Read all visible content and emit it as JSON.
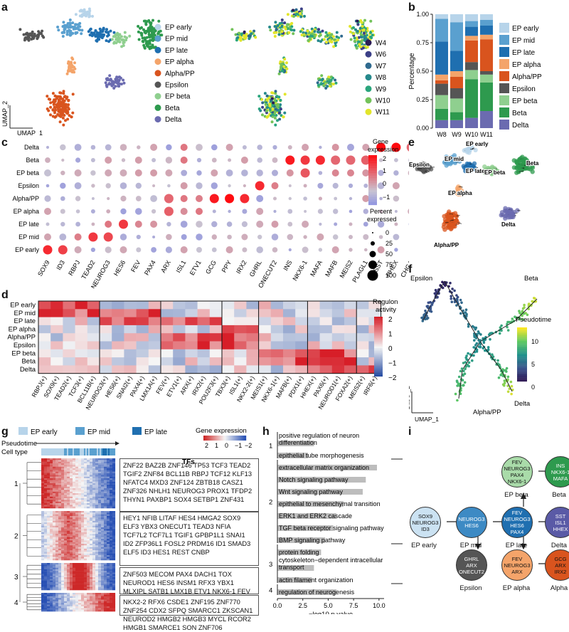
{
  "panels": {
    "a": "a",
    "b": "b",
    "c": "c",
    "d": "d",
    "e": "e",
    "f": "f",
    "g": "g",
    "h": "h",
    "i": "i"
  },
  "colors": {
    "EP early": "#b7d4ea",
    "EP mid": "#5aa0cf",
    "EP late": "#1f6fb0",
    "EP alpha": "#f4a46a",
    "Alpha/PP": "#d9541e",
    "Epsilon": "#555555",
    "EP beta": "#8fcf8f",
    "Beta": "#2e9a4e",
    "Delta": "#6b6bb0"
  },
  "panel_a": {
    "xlabel": "UMAP_1",
    "ylabel": "UMAP_2",
    "celltype_legend": [
      "EP early",
      "EP mid",
      "EP late",
      "EP alpha",
      "Alpha/PP",
      "Epsilon",
      "EP beta",
      "Beta",
      "Delta"
    ],
    "week_legend": [
      "W4",
      "W6",
      "W7",
      "W8",
      "W9",
      "W10",
      "W11"
    ],
    "week_colors": [
      "#2b1b54",
      "#3b3f87",
      "#2f6a8f",
      "#26898c",
      "#2aa57c",
      "#73c25a",
      "#e2e52b"
    ]
  },
  "panel_c": {
    "legend_title": "Gene expression",
    "percent_title": "Percent expressed",
    "color_ticks": [
      "2",
      "1",
      "0",
      "−1"
    ],
    "size_ticks": [
      "0",
      "25",
      "50",
      "75",
      "100"
    ]
  },
  "panel_d": {
    "legend_title": "Regulon activity",
    "ticks": [
      "2",
      "1",
      "0",
      "−1",
      "−2"
    ]
  },
  "panel_e": {
    "labels": [
      "EP early",
      "Epsilon",
      "EP mid",
      "EP late",
      "EP beta",
      "Beta",
      "EP alpha",
      "Alpha/PP",
      "Delta"
    ]
  },
  "panel_f": {
    "labels": [
      "Epsilon",
      "Beta",
      "Alpha/PP",
      "Delta"
    ],
    "legend_title": "Pseudotime",
    "ticks": [
      "10",
      "5",
      "0"
    ],
    "xlabel": "UMAP_1",
    "ylabel": "UMAP_2"
  },
  "panel_g": {
    "legend": [
      "EP early",
      "EP mid",
      "EP late"
    ],
    "pseudotime": "Pseudotime",
    "celltype": "Cell type",
    "ge_title": "Gene expression",
    "ge_ticks": [
      "2",
      "1",
      "0",
      "−1",
      "−2"
    ],
    "tfs": "TFs",
    "clusters": [
      {
        "id": "1",
        "lines": [
          "ZNF22 BAZ2B ZNF146 TP53 TCF3 TEAD2",
          "TGIF2 ZNF84 BCL11B RBPJ TCF12 KLF13",
          "NFATC4 MXD3 ZNF124 ZBTB18 CASZ1",
          "ZNF326 NHLH1 NEUROG3 PROX1 TFDP2",
          "THYN1 PAXBP1 SOX4 SETBP1 ZNF431"
        ]
      },
      {
        "id": "2",
        "lines": [
          "HEY1 NFIB LITAF HES4 HMGA2 SOX9",
          "ELF3 YBX3 ONECUT1 TEAD3 NFIA",
          "TCF7L2 TCF7L1 TGIF1 GPBP1L1 SNAI1",
          "ID2 ZFP36L1 FOSL2 PRDM16 ID1 SMAD3",
          "ELF5 ID3 HES1 REST CNBP"
        ]
      },
      {
        "id": "3",
        "lines": [
          "ZNF503 MECOM PAX4 DACH1 TOX",
          "NEUROD1 HES6 INSM1 RFX3 YBX1",
          "MLXIPL SATB1 LMX1B ETV1 NKX6-1 FEV"
        ]
      },
      {
        "id": "4",
        "lines": [
          "NKX2-2 RFX6 CSDE1 ZNF195 ZNF770",
          "ZNF254 CDX2 SFPQ SMARCC1 ZKSCAN1",
          "NEUROD2 HMGB2 HMGB3 MYCL RCOR2",
          "HMGB1 SMARCE1 SON ZNF706"
        ]
      }
    ]
  },
  "panel_h": {
    "xlabel": "−log10 p value",
    "xticks": [
      "0.0",
      "2.5",
      "5.0",
      "7.5",
      "10.0"
    ],
    "terms": [
      {
        "group": "1",
        "label": "positive regulation of neuron differentiation",
        "value": 3.6
      },
      {
        "group": "1",
        "label": "epithelial tube morphogenesis",
        "value": 3.0
      },
      {
        "group": "2",
        "label": "extracellular matrix organization",
        "value": 9.8
      },
      {
        "group": "2",
        "label": "Notch signaling pathway",
        "value": 8.7
      },
      {
        "group": "2",
        "label": "Wnt signaling pathway",
        "value": 8.4
      },
      {
        "group": "2",
        "label": "epithelial to mesenchymal transition",
        "value": 6.5
      },
      {
        "group": "2",
        "label": "ERK1 and ERK2 cascade",
        "value": 5.8
      },
      {
        "group": "2",
        "label": "TGF beta receptor signaling pathway",
        "value": 5.5
      },
      {
        "group": "2",
        "label": "BMP signaling pathway",
        "value": 4.7
      },
      {
        "group": "3",
        "label": "protein folding",
        "value": 4.3
      },
      {
        "group": "3",
        "label": "cytoskeleton−dependent intracellular transport",
        "value": 3.6
      },
      {
        "group": "3",
        "label": "actin filament organization",
        "value": 3.4
      },
      {
        "group": "4",
        "label": "regulation of neurogenesis",
        "value": 5.8
      }
    ]
  },
  "chart_data": [
    {
      "type": "bar",
      "panel": "b",
      "stacked": true,
      "categories": [
        "W8",
        "W9",
        "W10",
        "W11"
      ],
      "ylabel": "Percentage",
      "ylim": [
        0,
        1.0
      ],
      "yticks": [
        "0.00",
        "0.25",
        "0.50",
        "0.75",
        "1.00"
      ],
      "legend": [
        "EP early",
        "EP mid",
        "EP late",
        "EP alpha",
        "Alpha/PP",
        "Epsilon",
        "EP beta",
        "Beta",
        "Delta"
      ],
      "series": [
        {
          "name": "Delta",
          "values": [
            0.07,
            0.07,
            0.09,
            0.15
          ]
        },
        {
          "name": "Beta",
          "values": [
            0.1,
            0.07,
            0.34,
            0.25
          ]
        },
        {
          "name": "EP beta",
          "values": [
            0.12,
            0.12,
            0.08,
            0.07
          ]
        },
        {
          "name": "Epsilon",
          "values": [
            0.1,
            0.09,
            0.07,
            0.03
          ]
        },
        {
          "name": "Alpha/PP",
          "values": [
            0.03,
            0.1,
            0.19,
            0.28
          ]
        },
        {
          "name": "EP alpha",
          "values": [
            0.05,
            0.05,
            0.04,
            0.04
          ]
        },
        {
          "name": "EP late",
          "values": [
            0.29,
            0.18,
            0.08,
            0.08
          ]
        },
        {
          "name": "EP mid",
          "values": [
            0.2,
            0.25,
            0.05,
            0.05
          ]
        },
        {
          "name": "EP early",
          "values": [
            0.04,
            0.07,
            0.06,
            0.05
          ]
        }
      ]
    },
    {
      "type": "scatter",
      "panel": "c",
      "rows": [
        "Delta",
        "Beta",
        "EP beta",
        "Epsilon",
        "Alpha/PP",
        "EP alpha",
        "EP late",
        "EP mid",
        "EP early"
      ],
      "genes": [
        "SOX9",
        "ID3",
        "RBPJ",
        "TEAD2",
        "NEUROG3",
        "HES6",
        "FEV",
        "PAX4",
        "ARX",
        "ISL1",
        "ETV1",
        "GCG",
        "PPY",
        "IRX2",
        "GHRL",
        "ONECUT2",
        "INS",
        "NKX6-1",
        "MAFA",
        "MAFB",
        "MEIS2",
        "PLAGL1",
        "SST",
        "HHEX",
        "CHGA"
      ]
    },
    {
      "type": "heatmap",
      "panel": "d",
      "rows": [
        "EP early",
        "EP mid",
        "EP late",
        "EP alpha",
        "Alpha/PP",
        "Epsilon",
        "EP beta",
        "Beta",
        "Delta"
      ],
      "columns": [
        "RBPJ(+)",
        "SOX9(+)",
        "TEAD2(+)",
        "TCF3(+)",
        "BCL11B(+)",
        "NEUROG3(+)",
        "HES6(+)",
        "SNAI2(+)",
        "PAX4(+)",
        "LMX1A(+)",
        "FEV(+)",
        "ETV1(+)",
        "ARX(+)",
        "IRX2(+)",
        "POU2F3(+)",
        "TBX3(+)",
        "ISL1(+)",
        "NKX2-2(+)",
        "MEIS1(+)",
        "NKX6-1(+)",
        "MAFB(+)",
        "PDX1(+)",
        "HHEX(+)",
        "PAX6(+)",
        "NEUROD1(+)",
        "FOXA2(+)",
        "MEIS2(+)",
        "IRF6(+)"
      ]
    }
  ],
  "panel_i": {
    "nodes": [
      {
        "id": "ep_early",
        "genes": [
          "SOX9",
          "NEUROG3",
          "ID3"
        ],
        "label": "EP early"
      },
      {
        "id": "ep_mid",
        "genes": [
          "NEUROG3",
          "HES6"
        ],
        "label": "EP mid"
      },
      {
        "id": "ep_late",
        "genes": [
          "FEV",
          "NEUROG3",
          "HES6",
          "PAX4"
        ],
        "label": "EP late"
      },
      {
        "id": "ep_beta",
        "genes": [
          "FEV",
          "NEUROG3",
          "PAX4",
          "NKX6-1"
        ],
        "label": "EP beta"
      },
      {
        "id": "beta",
        "genes": [
          "INS",
          "NKX6-1",
          "MAFA"
        ],
        "label": "Beta"
      },
      {
        "id": "delta",
        "genes": [
          "SST",
          "ISL1",
          "HHEX"
        ],
        "label": "Delta"
      },
      {
        "id": "epsilon",
        "genes": [
          "GHRL",
          "ARX",
          "ONECUT2"
        ],
        "label": "Epsilon"
      },
      {
        "id": "ep_alpha",
        "genes": [
          "FEV",
          "NEUROG3",
          "ARX"
        ],
        "label": "EP alpha"
      },
      {
        "id": "alpha",
        "genes": [
          "GCG",
          "ARX",
          "IRX2"
        ],
        "label": "Alpha"
      }
    ]
  }
}
